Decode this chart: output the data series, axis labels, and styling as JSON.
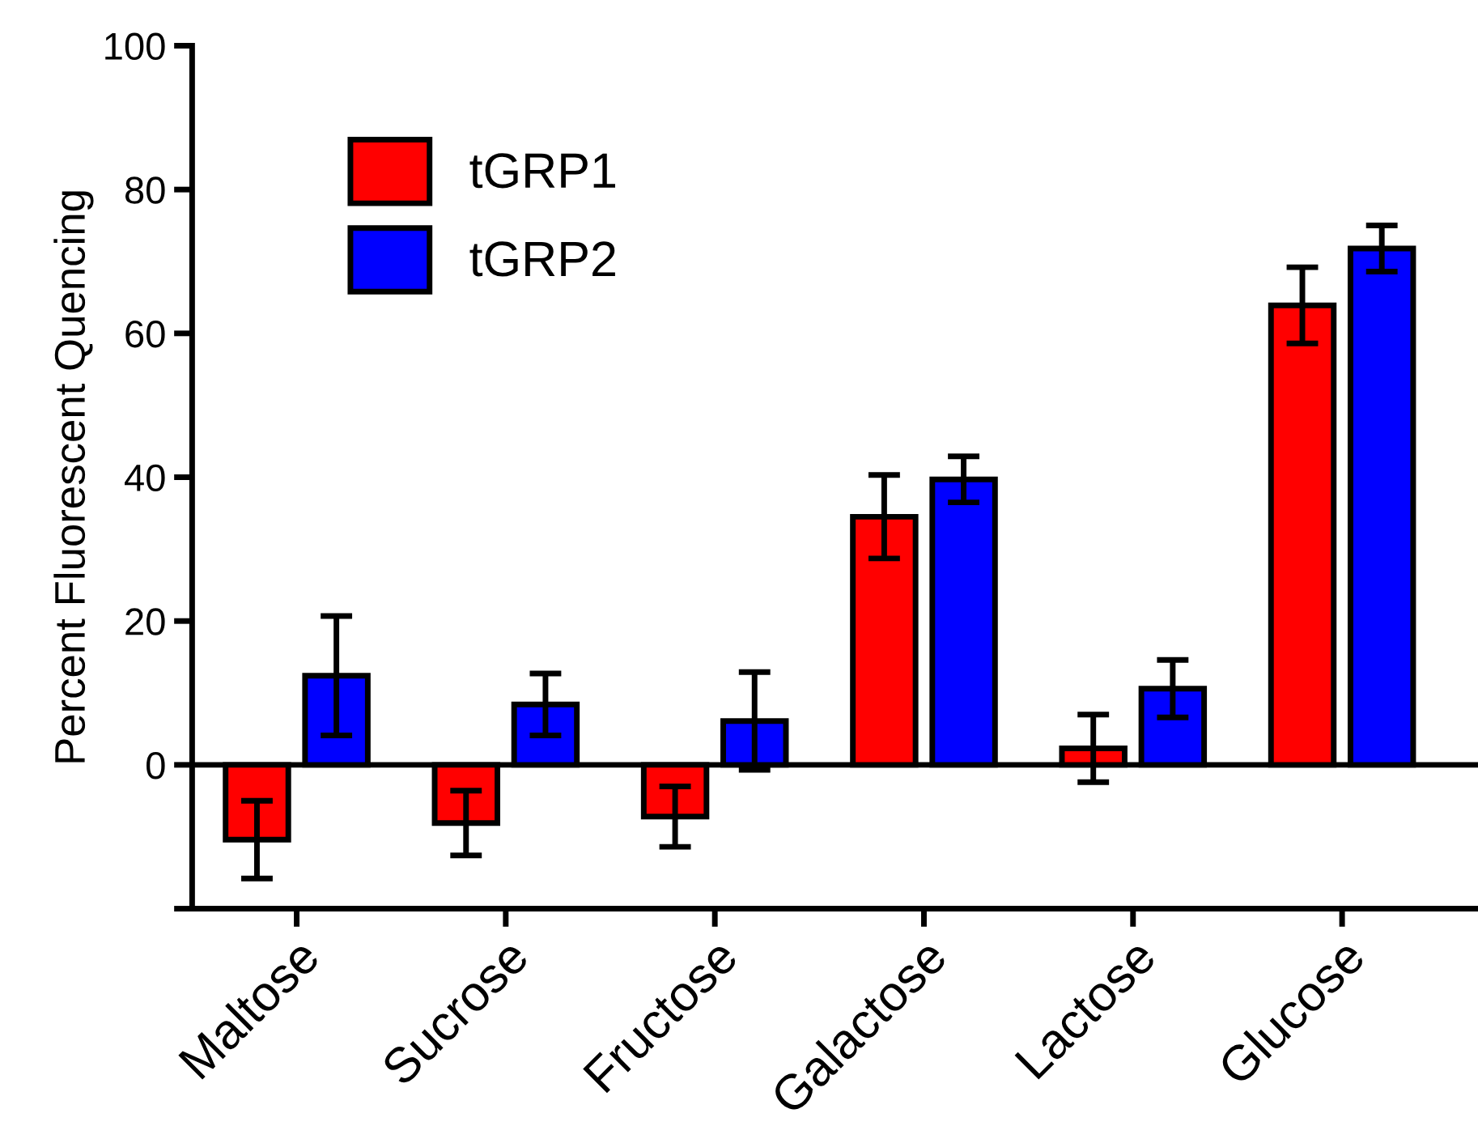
{
  "chart_data": {
    "type": "bar",
    "ylabel": "Percent Fluorescent Quencing",
    "categories": [
      "Maltose",
      "Sucrose",
      "Fructose",
      "Galactose",
      "Lactose",
      "Glucose"
    ],
    "series": [
      {
        "name": "tGRP1",
        "color": "#ff0000",
        "values": [
          -10.4,
          -8.1,
          -7.2,
          34.5,
          2.3,
          63.9
        ],
        "errors": [
          5.4,
          4.5,
          4.2,
          5.8,
          4.7,
          5.3
        ]
      },
      {
        "name": "tGRP2",
        "color": "#0000ff",
        "values": [
          12.4,
          8.4,
          6.1,
          39.7,
          10.6,
          71.8
        ],
        "errors": [
          8.3,
          4.3,
          6.8,
          3.2,
          4,
          3.2
        ]
      }
    ],
    "ylim": [
      -20,
      100
    ],
    "yticks": [
      {
        "value": -20,
        "label": null
      },
      0,
      20,
      40,
      60,
      80,
      100
    ],
    "ref_lines": [
      {
        "axis": "y",
        "value": 0,
        "color": "#000000"
      }
    ],
    "grid": false,
    "legend": "top left"
  }
}
